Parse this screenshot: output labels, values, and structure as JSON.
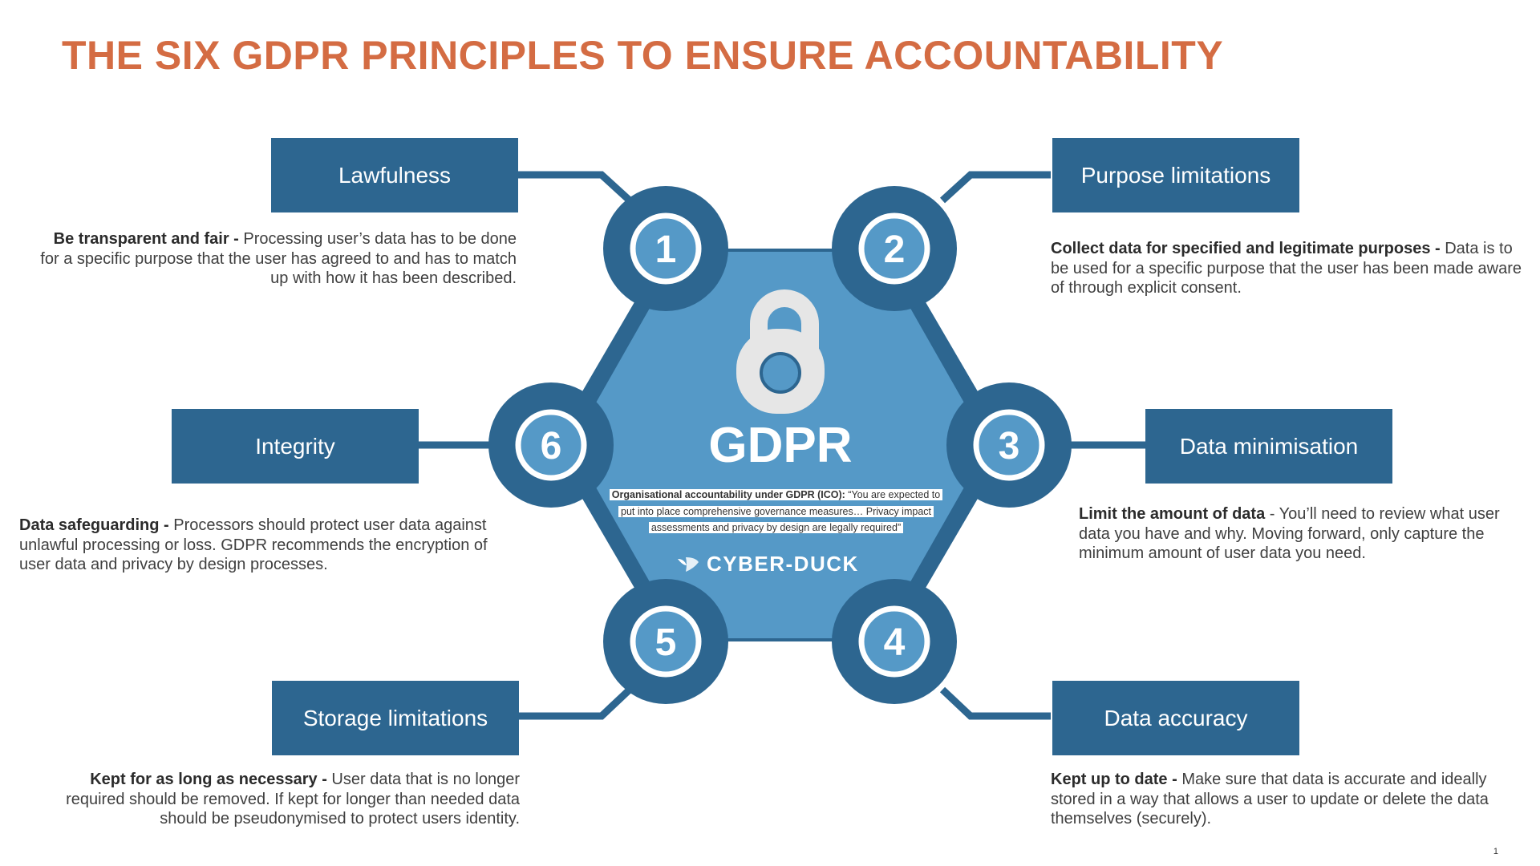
{
  "title": "THE SIX GDPR PRINCIPLES TO ENSURE ACCOUNTABILITY",
  "centre": {
    "icon": "padlock-icon",
    "label": "GDPR",
    "quote_bold": "Organisational accountability under GDPR (ICO):",
    "quote_text": " “You are expected to put into place comprehensive governance measures… Privacy impact assessments and privacy by design are legally required”",
    "brand": "CYBER-DUCK",
    "brand_icon": "duck-logo-icon"
  },
  "principles": [
    {
      "number": "1",
      "name": "Lawfulness",
      "lead": "Be transparent and fair -",
      "text": " Processing user’s data has to be done for a specific purpose that the user has agreed to and has to match up with how it has been described."
    },
    {
      "number": "2",
      "name": "Purpose limitations",
      "lead": "Collect data for specified and legitimate purposes -",
      "text": " Data is to be used for a specific purpose that the user has been made aware of through explicit consent."
    },
    {
      "number": "3",
      "name": "Data minimisation",
      "lead": "Limit the amount of data",
      "text": " - You’ll need to review what user data you have and why. Moving forward, only capture the minimum amount of user data you need."
    },
    {
      "number": "4",
      "name": "Data accuracy",
      "lead": "Kept up to date -",
      "text": " Make sure that data is accurate and ideally stored in a way that allows a user to update or delete the data themselves (securely)."
    },
    {
      "number": "5",
      "name": "Storage limitations",
      "lead": "Kept for as long as necessary -",
      "text": " User data that is no longer required should be removed. If kept for longer than needed data should be pseudonymised to protect users identity."
    },
    {
      "number": "6",
      "name": "Integrity",
      "lead": "Data safeguarding -",
      "text": " Processors should protect user data against unlawful processing or loss. GDPR recommends the encryption of user data and privacy by design processes."
    }
  ],
  "page_number": "1",
  "colors": {
    "title": "#d46c43",
    "dark_blue": "#2d6690",
    "light_blue": "#5599c7",
    "lock": "#e6e6e6"
  }
}
